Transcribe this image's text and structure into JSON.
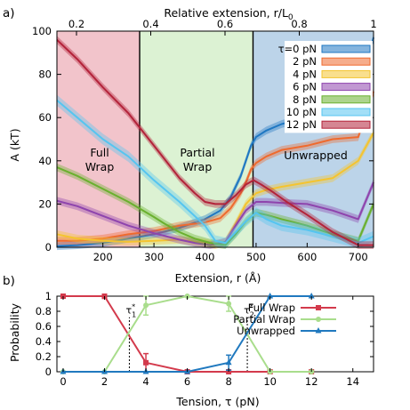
{
  "colors": {
    "tau0": "#1f77c2",
    "tau2": "#ef6a2e",
    "tau4": "#f4c430",
    "tau6": "#8e44ad",
    "tau8": "#6ab02e",
    "tau10": "#55c5f0",
    "tau12": "#b3233a",
    "full_wrap_bg": "#f2c4cb",
    "partial_wrap_bg": "#dcf2d3",
    "unwrapped_bg": "#bcd4e9",
    "full_wrap_line": "#d33a4c",
    "partial_wrap_line": "#a9dd8c",
    "unwrapped_line": "#2079bf"
  },
  "panel_a": {
    "letter": "a)",
    "top_axis_label": "Relative extension, r/L",
    "top_axis_sub": "0",
    "top_ticks": [
      "0.2",
      "0.4",
      "0.6",
      "0.8",
      "1"
    ],
    "region_full": [
      "Full",
      "Wrap"
    ],
    "region_partial": [
      "Partial",
      "Wrap"
    ],
    "region_unwrapped": "Unwrapped"
  },
  "panel_b": {
    "letter": "b)",
    "annotations": [
      {
        "text": "τ",
        "sub": "1",
        "sup": "*"
      },
      {
        "text": "τ",
        "sub": "2",
        "sup": "*"
      }
    ]
  },
  "chart_data": [
    {
      "type": "line",
      "xlabel": "Extension, r (Å)",
      "ylabel": "A (kT)",
      "xlim": [
        110,
        730
      ],
      "ylim": [
        0,
        100
      ],
      "x_ticks": [
        200,
        300,
        400,
        500,
        600,
        700
      ],
      "y_ticks": [
        0,
        20,
        40,
        60,
        80,
        100
      ],
      "secondary_x": {
        "label": "Relative extension, r/L0",
        "ticks": [
          0.2,
          0.4,
          0.6,
          0.8,
          1.0
        ]
      },
      "regions": [
        {
          "label": "Full Wrap",
          "from": 110,
          "to": 272
        },
        {
          "label": "Partial Wrap",
          "from": 272,
          "to": 494
        },
        {
          "label": "Unwrapped",
          "from": 494,
          "to": 730
        }
      ],
      "legend": {
        "placement": "top-right"
      },
      "series": [
        {
          "name": "τ=0 pN",
          "key": "tau0",
          "band": 1.8,
          "x": [
            110,
            150,
            200,
            250,
            300,
            350,
            400,
            430,
            450,
            470,
            480,
            490,
            500,
            520,
            550,
            600,
            650,
            700,
            730
          ],
          "y": [
            0.5,
            1,
            2,
            4,
            6,
            9,
            13,
            17,
            23,
            33,
            40,
            47,
            51,
            54,
            57,
            60,
            63,
            70,
            97
          ]
        },
        {
          "name": "2 pN",
          "key": "tau2",
          "band": 1.8,
          "x": [
            110,
            150,
            200,
            250,
            300,
            350,
            400,
            430,
            450,
            470,
            480,
            490,
            500,
            520,
            550,
            600,
            650,
            700,
            730
          ],
          "y": [
            3,
            3,
            4,
            6,
            7.5,
            10,
            11.5,
            13.5,
            18,
            25,
            30,
            36,
            39,
            42,
            45,
            47,
            50,
            51,
            72
          ]
        },
        {
          "name": "4 pN",
          "key": "tau4",
          "band": 1.8,
          "x": [
            110,
            150,
            200,
            250,
            300,
            350,
            400,
            420,
            440,
            460,
            480,
            500,
            520,
            550,
            600,
            650,
            700,
            730
          ],
          "y": [
            6,
            4,
            3,
            2.5,
            3,
            3.5,
            2,
            1,
            2.5,
            11,
            20,
            25,
            26.5,
            28,
            30,
            32,
            40,
            53
          ]
        },
        {
          "name": "6 pN",
          "key": "tau6",
          "band": 1.8,
          "x": [
            110,
            150,
            200,
            250,
            300,
            350,
            380,
            410,
            440,
            460,
            480,
            500,
            520,
            550,
            600,
            650,
            700,
            730
          ],
          "y": [
            21.5,
            19,
            14.5,
            10,
            6.5,
            3.5,
            2,
            1,
            2.5,
            10,
            17,
            21,
            21,
            20.5,
            20,
            17,
            13,
            30
          ]
        },
        {
          "name": "8 pN",
          "key": "tau8",
          "band": 1.8,
          "x": [
            110,
            150,
            200,
            250,
            300,
            320,
            350,
            380,
            410,
            440,
            460,
            480,
            500,
            520,
            550,
            600,
            650,
            700,
            730
          ],
          "y": [
            37,
            33,
            27,
            21,
            14,
            11,
            7,
            4,
            2,
            1,
            6,
            12,
            16,
            15,
            13,
            10,
            6,
            3,
            20
          ]
        },
        {
          "name": "10 pN",
          "key": "tau10",
          "band": 2.5,
          "x": [
            110,
            150,
            200,
            250,
            300,
            350,
            400,
            420,
            440,
            460,
            480,
            500,
            520,
            550,
            600,
            650,
            700,
            730
          ],
          "y": [
            68,
            60,
            50,
            42,
            31,
            21,
            10,
            3,
            2,
            7,
            12,
            16,
            13,
            10,
            8,
            5,
            2,
            5
          ]
        },
        {
          "name": "12 pN",
          "key": "tau12",
          "band": 1.8,
          "x": [
            110,
            150,
            200,
            250,
            300,
            350,
            380,
            400,
            420,
            440,
            460,
            480,
            495,
            510,
            530,
            560,
            600,
            650,
            700,
            730
          ],
          "y": [
            96,
            87,
            74,
            62,
            47,
            32,
            25,
            21,
            20,
            20,
            24,
            29,
            31,
            29,
            26,
            21,
            15,
            7,
            1,
            1
          ]
        }
      ]
    },
    {
      "type": "line",
      "xlabel": "Tension, τ (pN)",
      "ylabel": "Probability",
      "xlim": [
        -0.3,
        15
      ],
      "ylim": [
        0,
        1
      ],
      "x_ticks": [
        0,
        2,
        4,
        6,
        8,
        10,
        12,
        14
      ],
      "y_ticks": [
        0,
        0.2,
        0.4,
        0.6,
        0.8,
        1
      ],
      "legend": {
        "placement": "top-right"
      },
      "markers": [
        3.2,
        8.9
      ],
      "series": [
        {
          "name": "Full Wrap",
          "key": "full_wrap_line",
          "marker": "square",
          "x": [
            0,
            2,
            4,
            6,
            8,
            10,
            12
          ],
          "y": [
            1,
            1,
            0.12,
            0,
            0,
            0,
            0
          ],
          "err": [
            0,
            0.03,
            0.12,
            0,
            0,
            0,
            0
          ]
        },
        {
          "name": "Partial Wrap",
          "key": "partial_wrap_line",
          "marker": "circle",
          "x": [
            0,
            2,
            4,
            6,
            8,
            10,
            12
          ],
          "y": [
            0,
            0,
            0.88,
            1,
            0.9,
            0,
            0
          ],
          "err": [
            0,
            0,
            0.13,
            0,
            0.1,
            0,
            0
          ]
        },
        {
          "name": "Unwrapped",
          "key": "unwrapped_line",
          "marker": "triangle",
          "x": [
            0,
            2,
            4,
            6,
            8,
            10,
            12
          ],
          "y": [
            0,
            0,
            0,
            0,
            0.12,
            1,
            1
          ],
          "err": [
            0,
            0,
            0,
            0,
            0.1,
            0,
            0
          ]
        }
      ]
    }
  ]
}
